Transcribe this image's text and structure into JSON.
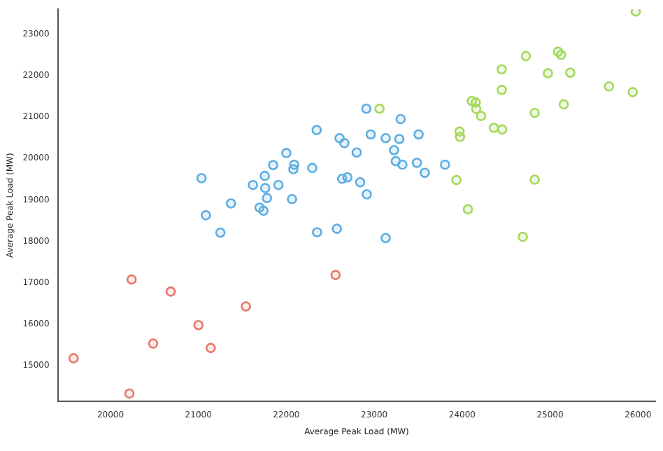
{
  "chart_data": {
    "type": "scatter",
    "xlabel": "Average Peak Load (MW)",
    "ylabel": "Average Peak Load (MW)",
    "xlim": [
      19400,
      26200
    ],
    "ylim": [
      14140,
      23600
    ],
    "xticks": [
      20000,
      21000,
      22000,
      23000,
      24000,
      25000,
      26000
    ],
    "yticks": [
      15000,
      16000,
      17000,
      18000,
      19000,
      20000,
      21000,
      22000,
      23000
    ],
    "grid": false,
    "legend": false,
    "marker": "circle",
    "series": [
      {
        "color": "#e8776a",
        "x": [
          19580,
          20240,
          20215,
          20485,
          20685,
          21000,
          21140,
          21540,
          22560
        ],
        "values": [
          15180,
          17080,
          14330,
          15535,
          16790,
          15980,
          15430,
          16430,
          17190
        ]
      },
      {
        "color": "#5dade2",
        "x": [
          21035,
          21085,
          21250,
          21370,
          21620,
          21755,
          21760,
          21780,
          21695,
          21740,
          21850,
          21910,
          22000,
          22090,
          22080,
          22065,
          22295,
          22345,
          22350,
          22575,
          22605,
          22660,
          22635,
          22695,
          22910,
          23300,
          22960,
          23130,
          23285,
          23505,
          22800,
          23225,
          23245,
          23320,
          23485,
          23575,
          23805,
          22840,
          22915,
          23130
        ],
        "values": [
          19525,
          18630,
          18210,
          18915,
          19360,
          19580,
          19285,
          19045,
          18815,
          18740,
          19840,
          19360,
          20130,
          19850,
          19740,
          19020,
          19770,
          20685,
          18220,
          18305,
          20490,
          20370,
          19510,
          19545,
          21200,
          20950,
          20580,
          20490,
          20470,
          20580,
          20145,
          20200,
          19935,
          19850,
          19895,
          19655,
          19850,
          19425,
          19135,
          18080
        ]
      },
      {
        "color": "#a3d95a",
        "x": [
          23060,
          25975,
          24725,
          25090,
          25125,
          24450,
          24975,
          25230,
          25670,
          25940,
          24450,
          24110,
          24155,
          24160,
          24215,
          25155,
          24825,
          24360,
          24455,
          23970,
          23975,
          23935,
          24825,
          24065,
          24690
        ],
        "values": [
          21200,
          23545,
          22470,
          22575,
          22500,
          22150,
          22055,
          22070,
          21740,
          21600,
          21655,
          21385,
          21350,
          21195,
          21025,
          21305,
          21100,
          20740,
          20700,
          20650,
          20520,
          19480,
          19490,
          18775,
          18110
        ]
      }
    ]
  }
}
